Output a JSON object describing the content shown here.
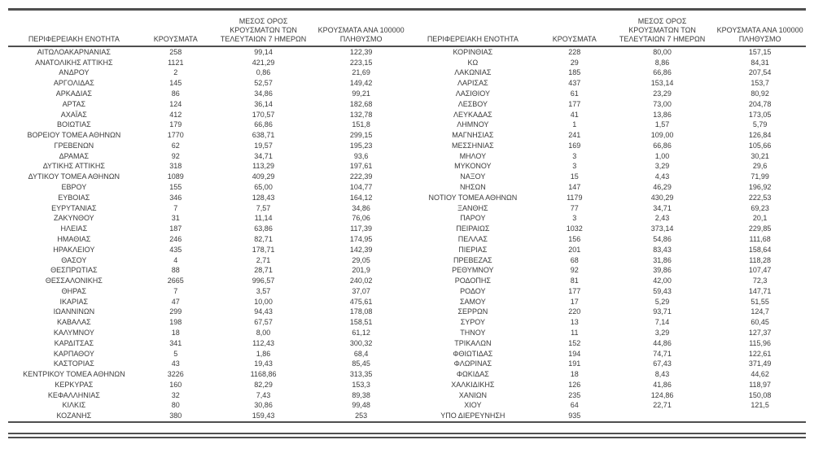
{
  "colors": {
    "text": "#3a3a3a",
    "rule": "#4f4f4f",
    "background": "#ffffff"
  },
  "table": {
    "columns": {
      "region": "ΠΕΡΙΦΕΡΕΙΑΚΗ ΕΝΟΤΗΤΑ",
      "cases": "ΚΡΟΥΣΜΑΤΑ",
      "avg7": "ΜΕΣΟΣ ΟΡΟΣ ΚΡΟΥΣΜΑΤΩΝ ΤΩΝ ΤΕΛΕΥΤΑΙΩΝ 7 ΗΜΕΡΩΝ",
      "per100k": "ΚΡΟΥΣΜΑΤΑ ΑΝΑ 100000 ΠΛΗΘΥΣΜΟ"
    },
    "left_rows": [
      [
        "ΑΙΤΩΛΟΑΚΑΡΝΑΝΙΑΣ",
        "258",
        "99,14",
        "122,39"
      ],
      [
        "ΑΝΑΤΟΛΙΚΗΣ ΑΤΤΙΚΗΣ",
        "1121",
        "421,29",
        "223,15"
      ],
      [
        "ΑΝΔΡΟΥ",
        "2",
        "0,86",
        "21,69"
      ],
      [
        "ΑΡΓΟΛΙΔΑΣ",
        "145",
        "52,57",
        "149,42"
      ],
      [
        "ΑΡΚΑΔΙΑΣ",
        "86",
        "34,86",
        "99,21"
      ],
      [
        "ΑΡΤΑΣ",
        "124",
        "36,14",
        "182,68"
      ],
      [
        "ΑΧΑΪΑΣ",
        "412",
        "170,57",
        "132,78"
      ],
      [
        "ΒΟΙΩΤΙΑΣ",
        "179",
        "66,86",
        "151,8"
      ],
      [
        "ΒΟΡΕΙΟΥ ΤΟΜΕΑ ΑΘΗΝΩΝ",
        "1770",
        "638,71",
        "299,15"
      ],
      [
        "ΓΡΕΒΕΝΩΝ",
        "62",
        "19,57",
        "195,23"
      ],
      [
        "ΔΡΑΜΑΣ",
        "92",
        "34,71",
        "93,6"
      ],
      [
        "ΔΥΤΙΚΗΣ ΑΤΤΙΚΗΣ",
        "318",
        "113,29",
        "197,61"
      ],
      [
        "ΔΥΤΙΚΟΥ ΤΟΜΕΑ ΑΘΗΝΩΝ",
        "1089",
        "409,29",
        "222,39"
      ],
      [
        "ΕΒΡΟΥ",
        "155",
        "65,00",
        "104,77"
      ],
      [
        "ΕΥΒΟΙΑΣ",
        "346",
        "128,43",
        "164,12"
      ],
      [
        "ΕΥΡΥΤΑΝΙΑΣ",
        "7",
        "7,57",
        "34,86"
      ],
      [
        "ΖΑΚΥΝΘΟΥ",
        "31",
        "11,14",
        "76,06"
      ],
      [
        "ΗΛΕΙΑΣ",
        "187",
        "63,86",
        "117,39"
      ],
      [
        "ΗΜΑΘΙΑΣ",
        "246",
        "82,71",
        "174,95"
      ],
      [
        "ΗΡΑΚΛΕΙΟΥ",
        "435",
        "178,71",
        "142,39"
      ],
      [
        "ΘΑΣΟΥ",
        "4",
        "2,71",
        "29,05"
      ],
      [
        "ΘΕΣΠΡΩΤΙΑΣ",
        "88",
        "28,71",
        "201,9"
      ],
      [
        "ΘΕΣΣΑΛΟΝΙΚΗΣ",
        "2665",
        "996,57",
        "240,02"
      ],
      [
        "ΘΗΡΑΣ",
        "7",
        "3,57",
        "37,07"
      ],
      [
        "ΙΚΑΡΙΑΣ",
        "47",
        "10,00",
        "475,61"
      ],
      [
        "ΙΩΑΝΝΙΝΩΝ",
        "299",
        "94,43",
        "178,08"
      ],
      [
        "ΚΑΒΑΛΑΣ",
        "198",
        "67,57",
        "158,51"
      ],
      [
        "ΚΑΛΥΜΝΟΥ",
        "18",
        "8,00",
        "61,12"
      ],
      [
        "ΚΑΡΔΙΤΣΑΣ",
        "341",
        "112,43",
        "300,32"
      ],
      [
        "ΚΑΡΠΑΘΟΥ",
        "5",
        "1,86",
        "68,4"
      ],
      [
        "ΚΑΣΤΟΡΙΑΣ",
        "43",
        "19,43",
        "85,45"
      ],
      [
        "ΚΕΝΤΡΙΚΟΥ ΤΟΜΕΑ ΑΘΗΝΩΝ",
        "3226",
        "1168,86",
        "313,35"
      ],
      [
        "ΚΕΡΚΥΡΑΣ",
        "160",
        "82,29",
        "153,3"
      ],
      [
        "ΚΕΦΑΛΛΗΝΙΑΣ",
        "32",
        "7,43",
        "89,38"
      ],
      [
        "ΚΙΛΚΙΣ",
        "80",
        "30,86",
        "99,48"
      ],
      [
        "ΚΟΖΑΝΗΣ",
        "380",
        "159,43",
        "253"
      ]
    ],
    "right_rows": [
      [
        "ΚΟΡΙΝΘΙΑΣ",
        "228",
        "80,00",
        "157,15"
      ],
      [
        "ΚΩ",
        "29",
        "8,86",
        "84,31"
      ],
      [
        "ΛΑΚΩΝΙΑΣ",
        "185",
        "66,86",
        "207,54"
      ],
      [
        "ΛΑΡΙΣΑΣ",
        "437",
        "153,14",
        "153,7"
      ],
      [
        "ΛΑΣΙΘΙΟΥ",
        "61",
        "23,29",
        "80,92"
      ],
      [
        "ΛΕΣΒΟΥ",
        "177",
        "73,00",
        "204,78"
      ],
      [
        "ΛΕΥΚΑΔΑΣ",
        "41",
        "13,86",
        "173,05"
      ],
      [
        "ΛΗΜΝΟΥ",
        "1",
        "1,57",
        "5,79"
      ],
      [
        "ΜΑΓΝΗΣΙΑΣ",
        "241",
        "109,00",
        "126,84"
      ],
      [
        "ΜΕΣΣΗΝΙΑΣ",
        "169",
        "66,86",
        "105,66"
      ],
      [
        "ΜΗΛΟΥ",
        "3",
        "1,00",
        "30,21"
      ],
      [
        "ΜΥΚΟΝΟΥ",
        "3",
        "3,29",
        "29,6"
      ],
      [
        "ΝΑΞΟΥ",
        "15",
        "4,43",
        "71,99"
      ],
      [
        "ΝΗΣΩΝ",
        "147",
        "46,29",
        "196,92"
      ],
      [
        "ΝΟΤΙΟΥ ΤΟΜΕΑ ΑΘΗΝΩΝ",
        "1179",
        "430,29",
        "222,53"
      ],
      [
        "ΞΑΝΘΗΣ",
        "77",
        "34,71",
        "69,23"
      ],
      [
        "ΠΑΡΟΥ",
        "3",
        "2,43",
        "20,1"
      ],
      [
        "ΠΕΙΡΑΙΩΣ",
        "1032",
        "373,14",
        "229,85"
      ],
      [
        "ΠΕΛΛΑΣ",
        "156",
        "54,86",
        "111,68"
      ],
      [
        "ΠΙΕΡΙΑΣ",
        "201",
        "83,43",
        "158,64"
      ],
      [
        "ΠΡΕΒΕΖΑΣ",
        "68",
        "31,86",
        "118,28"
      ],
      [
        "ΡΕΘΥΜΝΟΥ",
        "92",
        "39,86",
        "107,47"
      ],
      [
        "ΡΟΔΟΠΗΣ",
        "81",
        "42,00",
        "72,3"
      ],
      [
        "ΡΟΔΟΥ",
        "177",
        "59,43",
        "147,71"
      ],
      [
        "ΣΑΜΟΥ",
        "17",
        "5,29",
        "51,55"
      ],
      [
        "ΣΕΡΡΩΝ",
        "220",
        "93,71",
        "124,7"
      ],
      [
        "ΣΥΡΟΥ",
        "13",
        "7,14",
        "60,45"
      ],
      [
        "ΤΗΝΟΥ",
        "11",
        "3,29",
        "127,37"
      ],
      [
        "ΤΡΙΚΑΛΩΝ",
        "152",
        "44,86",
        "115,96"
      ],
      [
        "ΦΘΙΩΤΙΔΑΣ",
        "194",
        "74,71",
        "122,61"
      ],
      [
        "ΦΛΩΡΙΝΑΣ",
        "191",
        "67,43",
        "371,49"
      ],
      [
        "ΦΩΚΙΔΑΣ",
        "18",
        "8,43",
        "44,62"
      ],
      [
        "ΧΑΛΚΙΔΙΚΗΣ",
        "126",
        "41,86",
        "118,97"
      ],
      [
        "ΧΑΝΙΩΝ",
        "235",
        "124,86",
        "150,08"
      ],
      [
        "ΧΙΟΥ",
        "64",
        "22,71",
        "121,5"
      ],
      [
        "ΥΠΟ ΔΙΕΡΕΥΝΗΣΗ",
        "935",
        "",
        ""
      ]
    ]
  }
}
